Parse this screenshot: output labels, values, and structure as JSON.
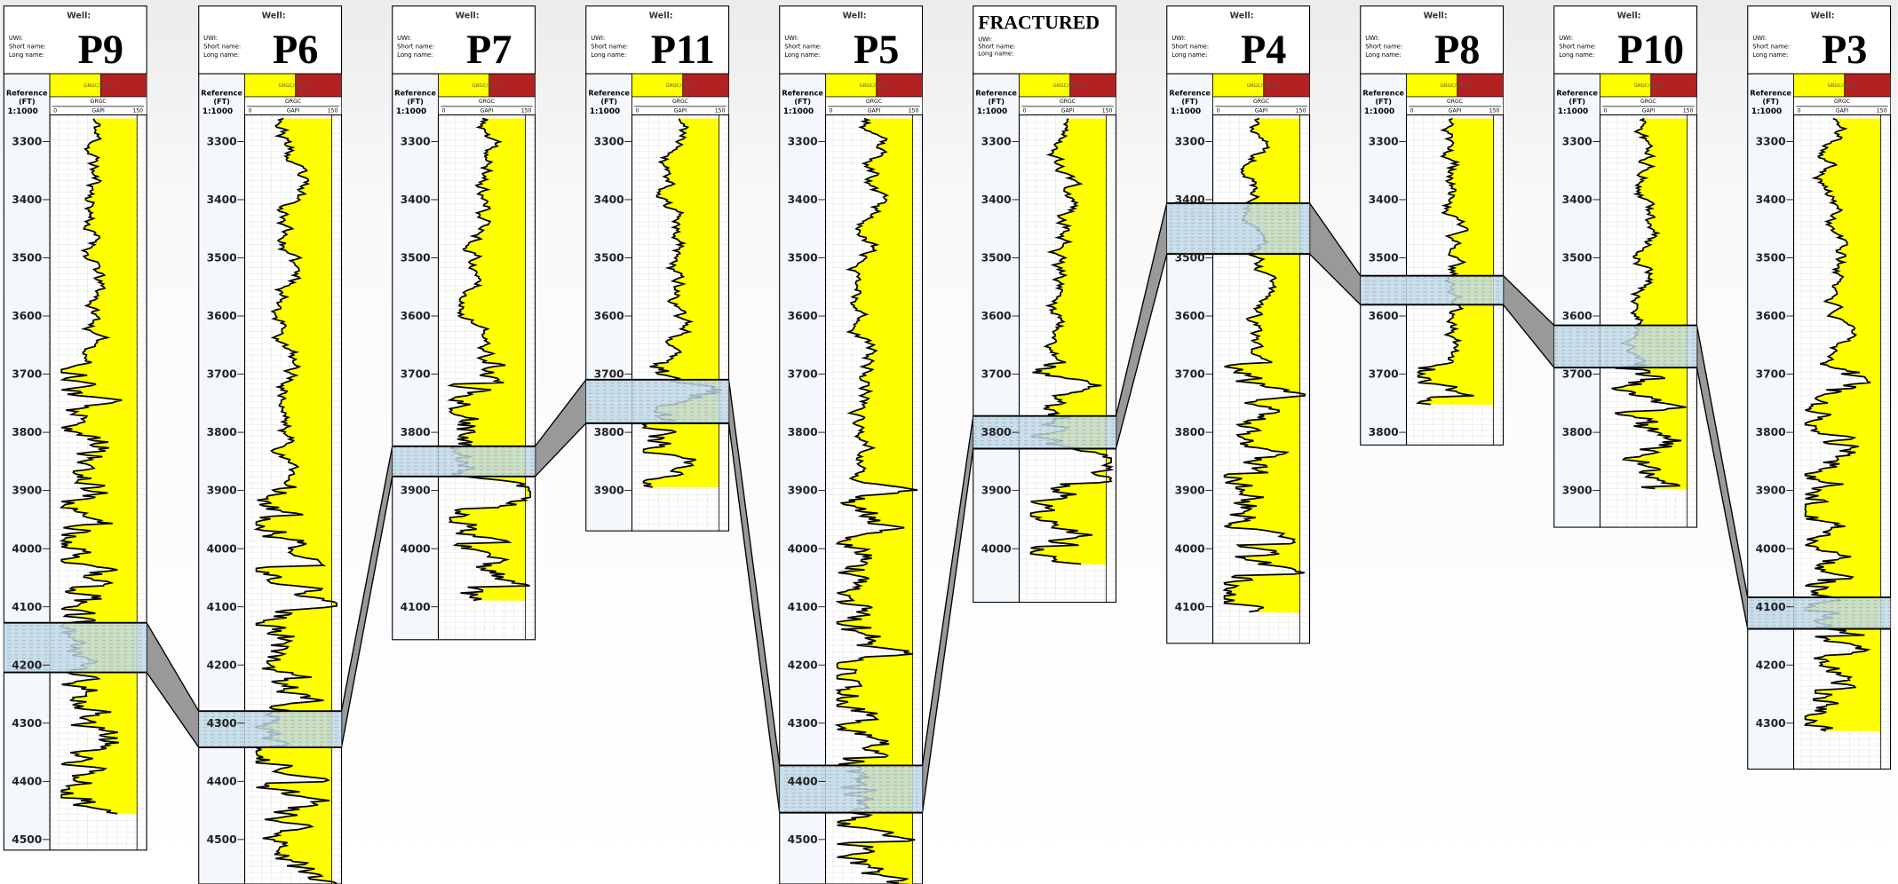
{
  "header_labels": {
    "well": "Well:",
    "uwi": "UWI:",
    "short_name": "Short name:",
    "long_name": "Long name:",
    "reference": "Reference",
    "unit": "(FT)",
    "scale": "1:1000",
    "track_title": "GRGC/Shale",
    "curve": "GRGC",
    "scale_min": "0",
    "curve_unit": "GAPI",
    "scale_max": "150"
  },
  "wells": [
    {
      "name": "P9",
      "depth_ticks": [
        3300,
        3400,
        3500,
        3600,
        3700,
        3800,
        3900,
        4000,
        4100,
        4200,
        4300,
        4400,
        4500
      ]
    },
    {
      "name": "P6",
      "depth_ticks": [
        3300,
        3400,
        3500,
        3600,
        3700,
        3800,
        3900,
        4000,
        4100,
        4200,
        4300,
        4400,
        4500
      ]
    },
    {
      "name": "P7",
      "depth_ticks": [
        3300,
        3400,
        3500,
        3600,
        3700,
        3800,
        3900,
        4000,
        4100
      ]
    },
    {
      "name": "P11",
      "depth_ticks": [
        3300,
        3400,
        3500,
        3600,
        3700,
        3800,
        3900
      ]
    },
    {
      "name": "P5",
      "depth_ticks": [
        3300,
        3400,
        3500,
        3600,
        3700,
        3800,
        3900,
        4000,
        4100,
        4200,
        4300,
        4400,
        4500
      ]
    },
    {
      "name": "FRACTURED",
      "depth_ticks": [
        3300,
        3400,
        3500,
        3600,
        3700,
        3800,
        3900,
        4000
      ]
    },
    {
      "name": "P4",
      "depth_ticks": [
        3300,
        3400,
        3500,
        3600,
        3700,
        3800,
        3900,
        4000,
        4100
      ]
    },
    {
      "name": "P8",
      "depth_ticks": [
        3300,
        3400,
        3500,
        3600,
        3700,
        3800
      ]
    },
    {
      "name": "P10",
      "depth_ticks": [
        3300,
        3400,
        3500,
        3600,
        3700,
        3800,
        3900
      ]
    },
    {
      "name": "P3",
      "depth_ticks": [
        3300,
        3400,
        3500,
        3600,
        3700,
        3800,
        3900,
        4000,
        4100,
        4200,
        4300
      ]
    }
  ]
}
